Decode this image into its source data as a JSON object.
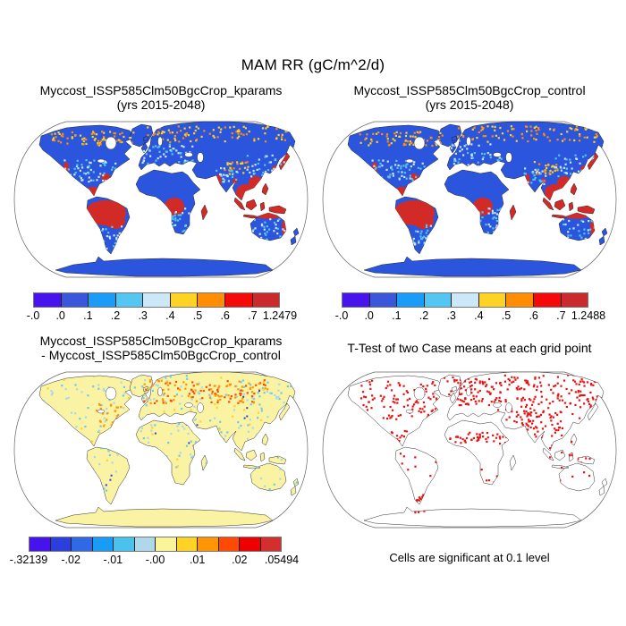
{
  "main_title": "MAM RR (gC/m^2/d)",
  "panels": {
    "tl": {
      "title_line1": "Myccost_ISSP585Clm50BgcCrop_kparams",
      "title_line2": "(yrs 2015-2048)",
      "map": {
        "mode": "field",
        "land": "#2B55DC"
      },
      "colorbar": {
        "colors": [
          "#4813EC",
          "#3A57DB",
          "#1C9CF9",
          "#55C5F1",
          "#CCE7F8",
          "#FFD226",
          "#FF8D05",
          "#F50A0A",
          "#CB2A2D"
        ],
        "labels": [
          "-.0",
          ".0",
          ".1",
          ".2",
          ".3",
          ".4",
          ".5",
          ".6",
          ".7",
          "1.2479"
        ]
      }
    },
    "tr": {
      "title_line1": "Myccost_ISSP585Clm50BgcCrop_control",
      "title_line2": "(yrs 2015-2048)",
      "map": {
        "mode": "field",
        "land": "#2B55DC"
      },
      "colorbar": {
        "colors": [
          "#4813EC",
          "#3A57DB",
          "#1C9CF9",
          "#55C5F1",
          "#CCE7F8",
          "#FFD226",
          "#FF8D05",
          "#F50A0A",
          "#CB2A2D"
        ],
        "labels": [
          "-.0",
          ".0",
          ".1",
          ".2",
          ".3",
          ".4",
          ".5",
          ".6",
          ".7",
          "1.2488"
        ]
      }
    },
    "bl": {
      "title_line1": "Myccost_ISSP585Clm50BgcCrop_kparams",
      "title_line2": "- Myccost_ISSP585Clm50BgcCrop_control",
      "map": {
        "mode": "diff",
        "land": "#FAF3A3"
      },
      "colorbar": {
        "colors": [
          "#4713EC",
          "#2C3EDD",
          "#3069E7",
          "#189CF5",
          "#49C3EE",
          "#AFD8EA",
          "#FAF599",
          "#FFD226",
          "#FF9405",
          "#FF4A05",
          "#EE0000",
          "#D32F2F"
        ],
        "labels": [
          "-.32139",
          "-.02",
          "-.01",
          "-.00",
          ".01",
          ".02",
          ".05494"
        ]
      }
    },
    "br": {
      "title_line1": "T-Test of two Case means at each grid point",
      "map": {
        "mode": "ttest",
        "land": "#FFFFFF"
      },
      "caption": "Cells are significant at 0.1 level"
    }
  },
  "map_colors": {
    "field_land": "#2B55DC",
    "field_hot": "#D22B27",
    "field_warm": [
      "#FFD226",
      "#FF8D05"
    ],
    "field_cool": [
      "#52C5F0",
      "#C9E6F8"
    ],
    "diff_land": "#FAF3A3",
    "diff_neg": [
      "#A5D8EE",
      "#6FC8EF",
      "#2B3FD8"
    ],
    "diff_pos": [
      "#FFD226",
      "#FF9405",
      "#FF4A05"
    ],
    "ttest_land": "#FFFFFF",
    "significant": "#E81212",
    "coastline": "#1A1A1A"
  },
  "chart_data": [
    {
      "type": "heatmap",
      "title": "Myccost_ISSP585Clm50BgcCrop_kparams (yrs 2015-2048)",
      "projection": "robinson world map",
      "units": "gC/m^2/d",
      "season": "MAM",
      "variable": "RR",
      "levels": [
        "-.0",
        ".0",
        ".1",
        ".2",
        ".3",
        ".4",
        ".5",
        ".6",
        ".7",
        "1.2479"
      ],
      "palette": [
        "#4813EC",
        "#3A57DB",
        "#1C9CF9",
        "#55C5F1",
        "#CCE7F8",
        "#FFD226",
        "#FF8D05",
        "#F50A0A",
        "#CB2A2D"
      ],
      "pattern": "tropics (Amazon, Congo, SE Asia, Indonesia) exceed 0.7 (red); mid and high latitude land 0-0.2 (blue); boreal margins 0.3-0.6 (yellow/orange); Antarctica ~0 (blue); ocean masked white"
    },
    {
      "type": "heatmap",
      "title": "Myccost_ISSP585Clm50BgcCrop_control (yrs 2015-2048)",
      "projection": "robinson world map",
      "units": "gC/m^2/d",
      "season": "MAM",
      "variable": "RR",
      "levels": [
        "-.0",
        ".0",
        ".1",
        ".2",
        ".3",
        ".4",
        ".5",
        ".6",
        ".7",
        "1.2488"
      ],
      "palette": [
        "#4813EC",
        "#3A57DB",
        "#1C9CF9",
        "#55C5F1",
        "#CCE7F8",
        "#FFD226",
        "#FF8D05",
        "#F50A0A",
        "#CB2A2D"
      ],
      "pattern": "nearly identical to kparams case: red tropics, blue extratropics"
    },
    {
      "type": "heatmap",
      "title": "Myccost_ISSP585Clm50BgcCrop_kparams - Myccost_ISSP585Clm50BgcCrop_control",
      "projection": "robinson world map",
      "units": "gC/m^2/d",
      "levels": [
        "-.32139",
        "-.02",
        "-.01",
        "-.00",
        ".01",
        ".02",
        ".05494"
      ],
      "palette": [
        "#4713EC",
        "#2C3EDD",
        "#3069E7",
        "#189CF5",
        "#49C3EE",
        "#AFD8EA",
        "#FAF599",
        "#FFD226",
        "#FF9405",
        "#FF4A05",
        "#EE0000",
        "#D32F2F"
      ],
      "pattern": "difference mostly near zero (pale yellow) with scattered light-blue negative speckles; positive orange/red band across Europe and Russia; Antarctica ~0"
    },
    {
      "type": "map",
      "title": "T-Test of two Case means at each grid point",
      "annotation": "Cells are significant at 0.1 level",
      "significant_color": "#E81212",
      "pattern": "red significant cells clustered over North America, Europe, Siberia, Sahel, India, China, Patagonia; land otherwise white with black coastlines"
    }
  ]
}
